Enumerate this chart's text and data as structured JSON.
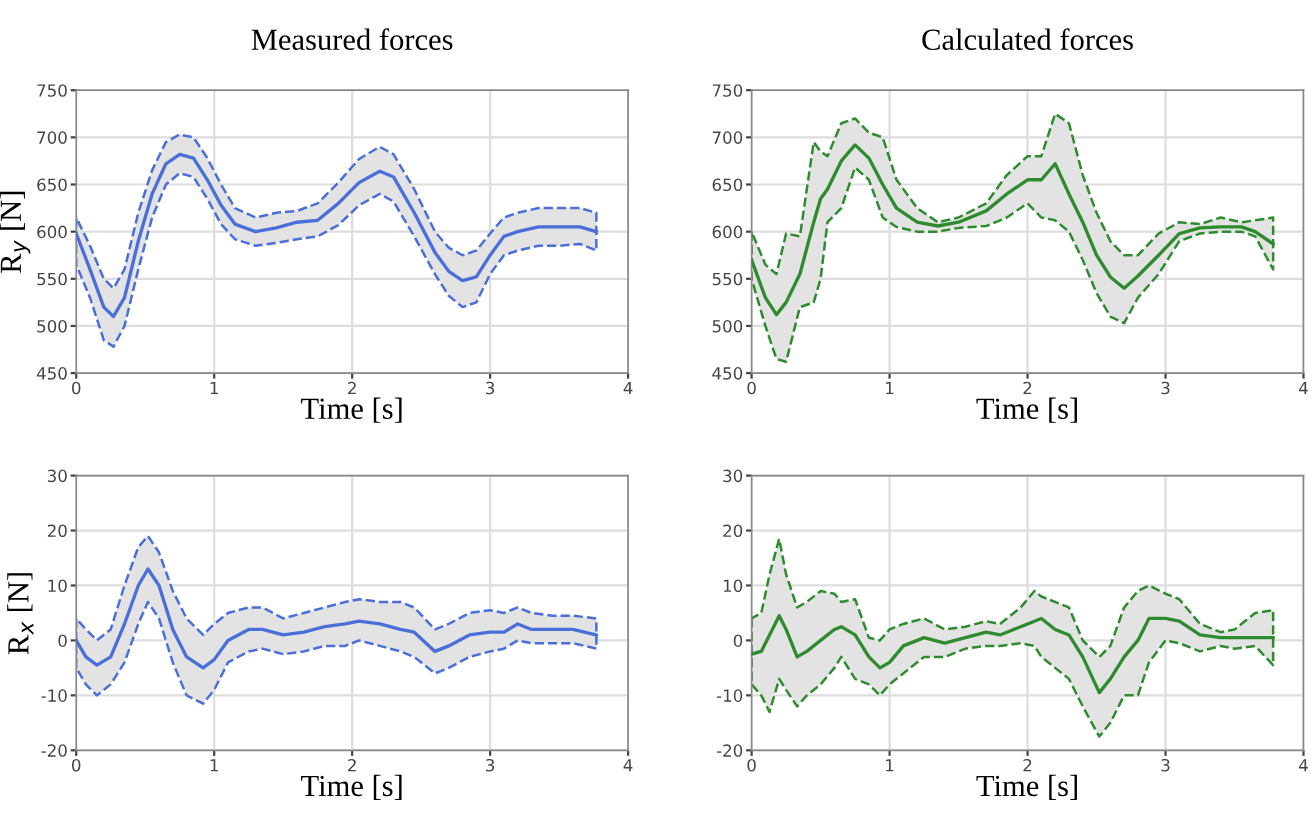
{
  "chart_data": [
    {
      "type": "line",
      "title": "Measured forces",
      "xlabel": "Time [s]",
      "ylabel": "R$_{y}$ [N]",
      "xlim": [
        0,
        4
      ],
      "xticks": [
        0,
        1,
        2,
        3,
        4
      ],
      "ylim": [
        450,
        750
      ],
      "yticks": [
        450,
        500,
        550,
        600,
        650,
        700,
        750
      ],
      "grid": true,
      "line_style": "solid",
      "series": [
        {
          "color": "#4a6fd8",
          "x": [
            0,
            0.1,
            0.2,
            0.27,
            0.35,
            0.45,
            0.55,
            0.65,
            0.75,
            0.85,
            0.95,
            1.05,
            1.15,
            1.3,
            1.45,
            1.6,
            1.75,
            1.9,
            2.05,
            2.2,
            2.3,
            2.45,
            2.6,
            2.7,
            2.8,
            2.9,
            3.0,
            3.1,
            3.2,
            3.35,
            3.5,
            3.65,
            3.77
          ],
          "values": [
            598,
            560,
            520,
            510,
            530,
            590,
            640,
            672,
            682,
            678,
            655,
            628,
            608,
            600,
            604,
            610,
            612,
            630,
            652,
            664,
            658,
            620,
            578,
            558,
            548,
            552,
            575,
            595,
            600,
            605,
            605,
            605,
            600
          ],
          "upper": [
            615,
            585,
            550,
            540,
            560,
            620,
            665,
            695,
            703,
            700,
            678,
            650,
            625,
            615,
            620,
            622,
            630,
            652,
            677,
            690,
            682,
            645,
            600,
            583,
            575,
            580,
            598,
            615,
            620,
            625,
            625,
            625,
            620
          ],
          "lower": [
            565,
            530,
            485,
            478,
            500,
            560,
            615,
            650,
            662,
            658,
            635,
            608,
            592,
            585,
            588,
            592,
            595,
            607,
            628,
            640,
            632,
            595,
            555,
            532,
            520,
            525,
            555,
            575,
            580,
            585,
            585,
            587,
            580
          ]
        }
      ]
    },
    {
      "type": "line",
      "title": "Calculated forces",
      "xlabel": "Time [s]",
      "xlim": [
        0,
        4
      ],
      "xticks": [
        0,
        1,
        2,
        3,
        4
      ],
      "ylim": [
        450,
        750
      ],
      "yticks": [
        450,
        500,
        550,
        600,
        650,
        700,
        750
      ],
      "grid": true,
      "line_style": "solid",
      "series": [
        {
          "color": "#2e8b2e",
          "x": [
            0,
            0.1,
            0.18,
            0.25,
            0.35,
            0.45,
            0.5,
            0.55,
            0.65,
            0.75,
            0.85,
            0.95,
            1.05,
            1.2,
            1.35,
            1.5,
            1.7,
            1.85,
            2.0,
            2.1,
            2.2,
            2.3,
            2.4,
            2.5,
            2.6,
            2.7,
            2.8,
            2.95,
            3.1,
            3.25,
            3.4,
            3.55,
            3.65,
            3.78
          ],
          "values": [
            570,
            530,
            512,
            525,
            555,
            610,
            635,
            645,
            675,
            692,
            678,
            650,
            625,
            610,
            606,
            610,
            622,
            640,
            655,
            655,
            672,
            640,
            610,
            575,
            552,
            540,
            553,
            575,
            598,
            604,
            605,
            605,
            600,
            587
          ],
          "upper": [
            600,
            565,
            555,
            598,
            595,
            695,
            685,
            680,
            715,
            720,
            705,
            700,
            655,
            625,
            610,
            615,
            630,
            660,
            680,
            680,
            725,
            715,
            660,
            620,
            590,
            575,
            575,
            598,
            610,
            608,
            615,
            610,
            612,
            615
          ],
          "lower": [
            550,
            500,
            465,
            462,
            520,
            525,
            550,
            610,
            625,
            668,
            655,
            615,
            605,
            600,
            600,
            604,
            606,
            615,
            630,
            615,
            612,
            600,
            570,
            535,
            510,
            503,
            530,
            555,
            590,
            598,
            600,
            600,
            595,
            560
          ]
        }
      ]
    },
    {
      "type": "line",
      "xlabel": "Time [s]",
      "ylabel": "R$_{x}$ [N]",
      "xlim": [
        0,
        4
      ],
      "xticks": [
        0,
        1,
        2,
        3,
        4
      ],
      "ylim": [
        -20,
        30
      ],
      "yticks": [
        -20,
        -10,
        0,
        10,
        20,
        30
      ],
      "grid": true,
      "line_style": "solid",
      "series": [
        {
          "color": "#4a6fd8",
          "x": [
            0,
            0.07,
            0.15,
            0.25,
            0.35,
            0.45,
            0.52,
            0.6,
            0.7,
            0.8,
            0.92,
            1.0,
            1.1,
            1.25,
            1.35,
            1.5,
            1.65,
            1.8,
            1.95,
            2.05,
            2.2,
            2.35,
            2.45,
            2.6,
            2.7,
            2.85,
            3.0,
            3.1,
            3.2,
            3.3,
            3.45,
            3.6,
            3.77
          ],
          "values": [
            0,
            -3,
            -4.5,
            -3,
            3,
            10,
            13,
            10,
            2,
            -3,
            -5,
            -3.5,
            0,
            2,
            2,
            1,
            1.5,
            2.5,
            3,
            3.5,
            3,
            2,
            1.5,
            -2,
            -1,
            1,
            1.5,
            1.5,
            3,
            2,
            2,
            2,
            1
          ],
          "upper": [
            4,
            2,
            0,
            2,
            10,
            17,
            19,
            16,
            9,
            4,
            1,
            3,
            5,
            6,
            6,
            4,
            5,
            6,
            7,
            7.5,
            7,
            7,
            6,
            2,
            3,
            5,
            5.5,
            5,
            6,
            5,
            4.5,
            4.5,
            4
          ],
          "lower": [
            -5,
            -8,
            -10,
            -8,
            -4,
            3,
            7,
            4,
            -4,
            -10,
            -11.5,
            -9,
            -4,
            -2,
            -1.5,
            -2.5,
            -2,
            -1,
            -1,
            0,
            -1,
            -2,
            -3,
            -6,
            -5,
            -3,
            -2,
            -1.5,
            0,
            -0.5,
            -0.5,
            -0.5,
            -1.5
          ]
        }
      ]
    },
    {
      "type": "line",
      "xlabel": "Time [s]",
      "xlim": [
        0,
        4
      ],
      "xticks": [
        0,
        1,
        2,
        3,
        4
      ],
      "ylim": [
        -20,
        30
      ],
      "yticks": [
        -20,
        -10,
        0,
        10,
        20,
        30
      ],
      "grid": true,
      "line_style": "solid",
      "series": [
        {
          "color": "#2e8b2e",
          "x": [
            0,
            0.07,
            0.13,
            0.2,
            0.25,
            0.33,
            0.4,
            0.5,
            0.6,
            0.65,
            0.75,
            0.85,
            0.93,
            1.0,
            1.1,
            1.25,
            1.4,
            1.55,
            1.7,
            1.8,
            1.95,
            2.05,
            2.1,
            2.2,
            2.3,
            2.4,
            2.52,
            2.6,
            2.7,
            2.8,
            2.88,
            3.0,
            3.1,
            3.25,
            3.4,
            3.5,
            3.65,
            3.78
          ],
          "values": [
            -2.5,
            -2,
            1,
            4.5,
            2,
            -3,
            -2,
            0,
            2,
            2.5,
            1,
            -3,
            -5,
            -4,
            -1,
            0.5,
            -0.5,
            0.5,
            1.5,
            1,
            2.5,
            3.5,
            4,
            2,
            1,
            -3,
            -9.5,
            -7,
            -3,
            0,
            4,
            4,
            3.5,
            1,
            0.5,
            0.5,
            0.5,
            0.5
          ],
          "upper": [
            4,
            5,
            12,
            18.5,
            12,
            6,
            7,
            9,
            8.5,
            7,
            7.5,
            0.5,
            0,
            2,
            3,
            4,
            2,
            2.5,
            3.5,
            3,
            6,
            9,
            8,
            7,
            6,
            0,
            -3,
            -1,
            6,
            9,
            10,
            8.5,
            7.5,
            3,
            1.5,
            2,
            5,
            5.5
          ],
          "lower": [
            -8,
            -10,
            -13,
            -7,
            -9,
            -12,
            -10,
            -8,
            -5,
            -3,
            -7,
            -8,
            -10,
            -8,
            -6,
            -3,
            -3,
            -1.5,
            -1,
            -1,
            -0.5,
            -1,
            -3,
            -5,
            -7,
            -12,
            -17.5,
            -15,
            -10,
            -10,
            -4,
            0,
            -0.5,
            -2,
            -1,
            -1.5,
            -1,
            -4.5
          ]
        }
      ]
    }
  ]
}
